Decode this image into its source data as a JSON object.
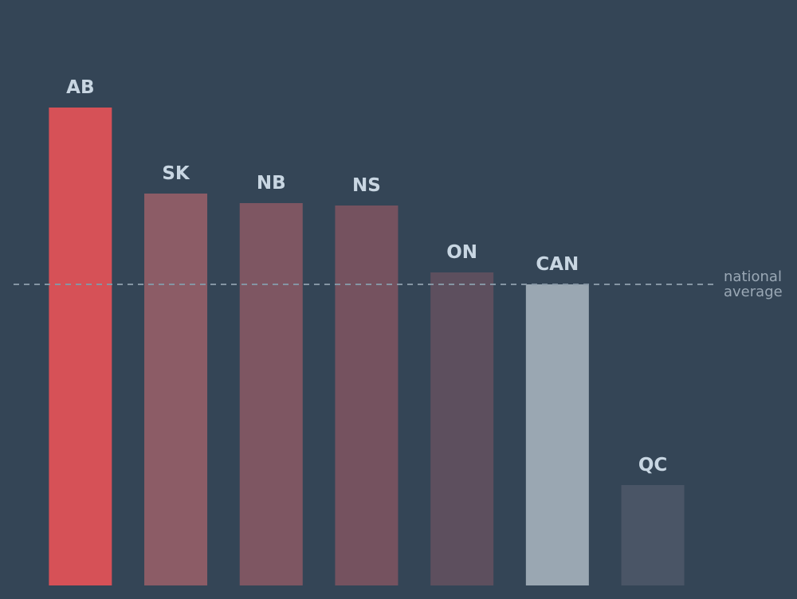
{
  "chart_data": {
    "type": "bar",
    "categories": [
      "AB",
      "SK",
      "NB",
      "NS",
      "ON",
      "CAN",
      "QC"
    ],
    "values": [
      60,
      49.2,
      48,
      47.7,
      39.3,
      37.8,
      12.6
    ],
    "colors": [
      "#d65157",
      "#8c5c66",
      "#7e5662",
      "#75525f",
      "#5d4f5e",
      "#9aa7b2",
      "#4a5566"
    ],
    "ylim": [
      0,
      73.5
    ],
    "reference_line": {
      "value": 37.8,
      "label_lines": [
        "national",
        "average"
      ],
      "color": "#8595a3"
    }
  }
}
